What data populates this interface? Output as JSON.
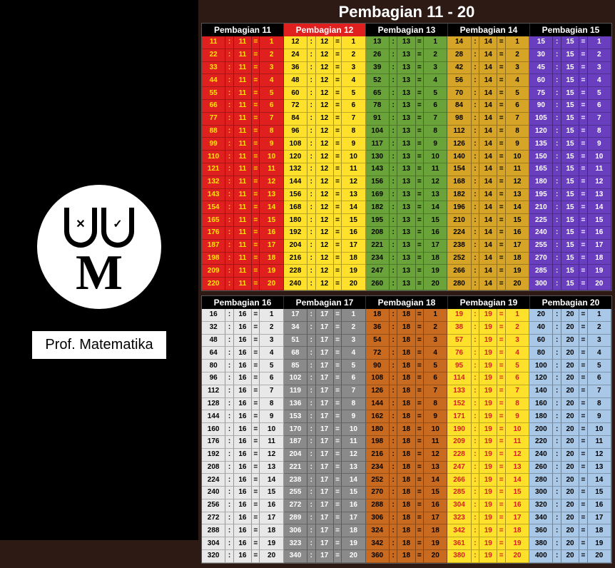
{
  "title": "Pembagian 11 - 20",
  "logo_letter": "M",
  "prof_label": "Prof. Matematika",
  "colon": ":",
  "equals": "=",
  "blocks": [
    {
      "columns": [
        {
          "label": "Pembagian 11",
          "divisor": 11,
          "bg": "#e01f1f",
          "fg": "#ffe600",
          "header_bg": "#000",
          "header_fg": "#fff"
        },
        {
          "label": "Pembagian 12",
          "divisor": 12,
          "bg": "#ffe12b",
          "fg": "#000000",
          "header_bg": "#e01f1f",
          "header_fg": "#fff"
        },
        {
          "label": "Pembagian 13",
          "divisor": 13,
          "bg": "#6aa33a",
          "fg": "#000000",
          "header_bg": "#000",
          "header_fg": "#fff"
        },
        {
          "label": "Pembagian 14",
          "divisor": 14,
          "bg": "#d6a528",
          "fg": "#000000",
          "header_bg": "#000",
          "header_fg": "#fff"
        },
        {
          "label": "Pembagian 15",
          "divisor": 15,
          "bg": "#6a3fbf",
          "fg": "#ffffff",
          "header_bg": "#000",
          "header_fg": "#fff"
        }
      ]
    },
    {
      "columns": [
        {
          "label": "Pembagian 16",
          "divisor": 16,
          "bg": "#e8e8e8",
          "fg": "#000000",
          "header_bg": "#000",
          "header_fg": "#fff"
        },
        {
          "label": "Pembagian 17",
          "divisor": 17,
          "bg": "#8a8a8a",
          "fg": "#ffffff",
          "header_bg": "#000",
          "header_fg": "#fff"
        },
        {
          "label": "Pembagian 18",
          "divisor": 18,
          "bg": "#c86a1f",
          "fg": "#000000",
          "header_bg": "#000",
          "header_fg": "#fff"
        },
        {
          "label": "Pembagian 19",
          "divisor": 19,
          "bg": "#ffe12b",
          "fg": "#d42020",
          "header_bg": "#000",
          "header_fg": "#fff"
        },
        {
          "label": "Pembagian 20",
          "divisor": 20,
          "bg": "#a9c7e6",
          "fg": "#000000",
          "header_bg": "#000",
          "header_fg": "#fff"
        }
      ]
    }
  ],
  "rows_per_column": 20
}
